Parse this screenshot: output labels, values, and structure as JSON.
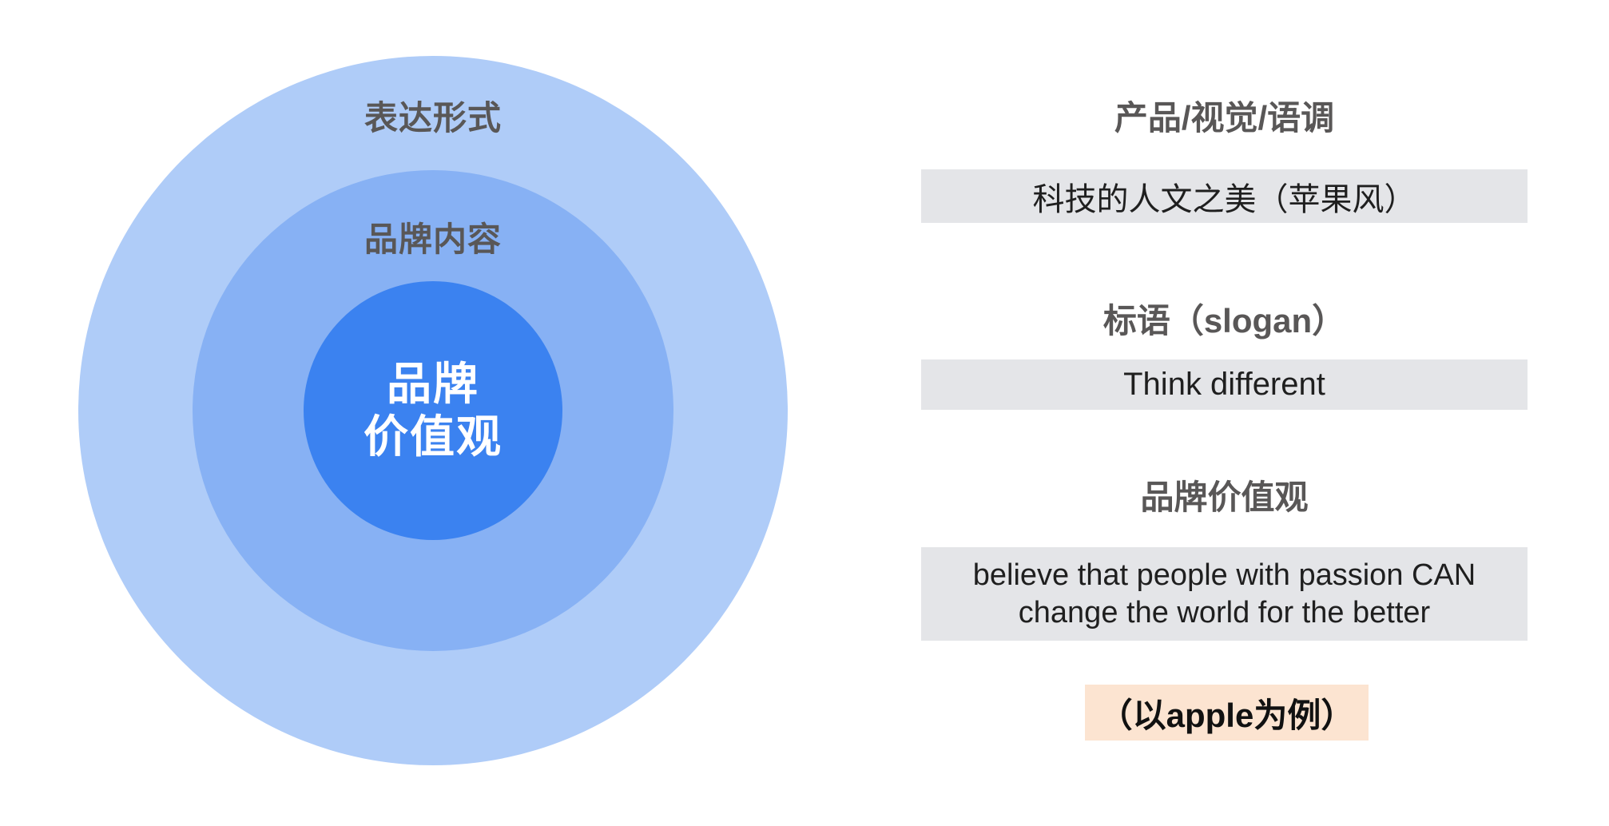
{
  "diagram": {
    "rings": [
      {
        "label": "表达形式"
      },
      {
        "label": "品牌内容"
      },
      {
        "label": "品牌\n价值观"
      }
    ]
  },
  "sections": [
    {
      "heading": "产品/视觉/语调",
      "value": "科技的人文之美（苹果风）"
    },
    {
      "heading": "标语（slogan）",
      "value": "Think different"
    },
    {
      "heading": "品牌价值观",
      "value": "believe that people with passion CAN\nchange the world for the better"
    }
  ],
  "footnote": "（以apple为例）",
  "colors": {
    "ring_outer": "#afccf8",
    "ring_middle": "#87b1f4",
    "ring_inner": "#3b82f0",
    "ring_label_text": "#595757",
    "inner_ring_text": "#ffffff",
    "value_box_background": "#e4e5e8",
    "value_box_text": "#1f1f1f",
    "footnote_background": "#fce4d1",
    "footnote_text": "#111111",
    "page_background": "#ffffff"
  }
}
